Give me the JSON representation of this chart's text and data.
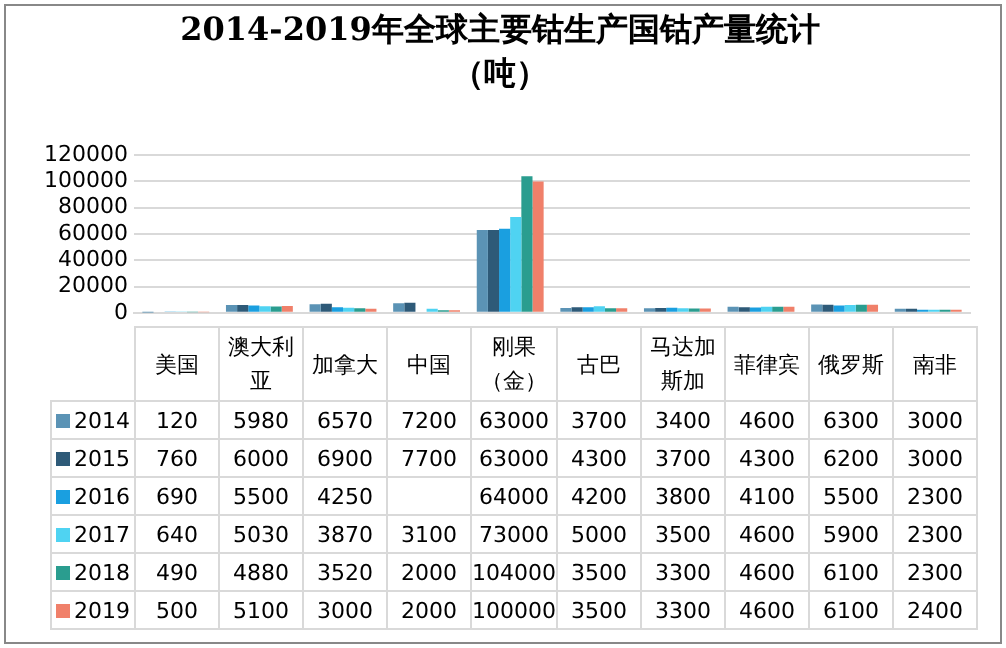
{
  "chart_data": {
    "type": "bar",
    "title": "2014-2019年全球主要钴生产国钴产量统计（吨）",
    "categories": [
      "美国",
      "澳大利亚",
      "加拿大",
      "中国",
      "刚果（金）",
      "古巴",
      "马达加斯加",
      "菲律宾",
      "俄罗斯",
      "南非"
    ],
    "series": [
      {
        "name": "2014",
        "color": "#5b93b5",
        "values": [
          120,
          5980,
          6570,
          7200,
          63000,
          3700,
          3400,
          4600,
          6300,
          3000
        ]
      },
      {
        "name": "2015",
        "color": "#2e5a78",
        "values": [
          760,
          6000,
          6900,
          7700,
          63000,
          4300,
          3700,
          4300,
          6200,
          3000
        ]
      },
      {
        "name": "2016",
        "color": "#1a9fe0",
        "values": [
          690,
          5500,
          4250,
          null,
          64000,
          4200,
          3800,
          4100,
          5500,
          2300
        ]
      },
      {
        "name": "2017",
        "color": "#4fd3f2",
        "values": [
          640,
          5030,
          3870,
          3100,
          73000,
          5000,
          3500,
          4600,
          5900,
          2300
        ]
      },
      {
        "name": "2018",
        "color": "#2a9d8f",
        "values": [
          490,
          4880,
          3520,
          2000,
          104000,
          3500,
          3300,
          4600,
          6100,
          2300
        ]
      },
      {
        "name": "2019",
        "color": "#f0806a",
        "values": [
          500,
          5100,
          3000,
          2000,
          100000,
          3500,
          3300,
          4600,
          6100,
          2400
        ]
      }
    ],
    "ylim": [
      0,
      120000
    ],
    "yticks": [
      0,
      20000,
      40000,
      60000,
      80000,
      100000,
      120000
    ],
    "grid": "y",
    "legend": "bottom left",
    "data_labels": true
  }
}
